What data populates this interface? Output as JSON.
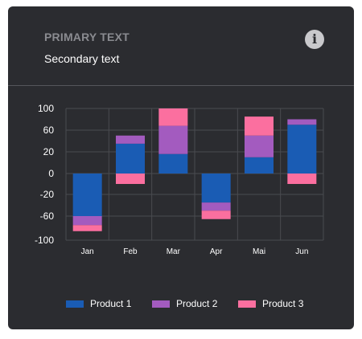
{
  "card": {
    "title": "PRIMARY TEXT",
    "subtitle": "Secondary text",
    "info_icon": "info-icon"
  },
  "colors": {
    "background": "#2b2c30",
    "grid": "#4a4b50",
    "axis_text": "#ffffff",
    "Product 1": "#1a5cb4",
    "Product 2": "#a35bbf",
    "Product 3": "#fb6f9f"
  },
  "chart_data": {
    "type": "bar",
    "stacked": true,
    "categories": [
      "Jan",
      "Feb",
      "Mar",
      "Apr",
      "Mai",
      "Jun"
    ],
    "series": [
      {
        "name": "Product 1",
        "values": [
          -60,
          35,
          18,
          -35,
          15,
          70
        ]
      },
      {
        "name": "Product 2",
        "values": [
          -15,
          15,
          50,
          -15,
          35,
          10
        ]
      },
      {
        "name": "Product 3",
        "values": [
          -10,
          -10,
          35,
          -15,
          35,
          -10
        ]
      }
    ],
    "yticks": [
      100,
      60,
      20,
      0,
      -20,
      -60,
      -100
    ],
    "ylim": [
      -100,
      100
    ],
    "xlabel": "",
    "ylabel": "",
    "grid": true,
    "legend": "bottom"
  }
}
